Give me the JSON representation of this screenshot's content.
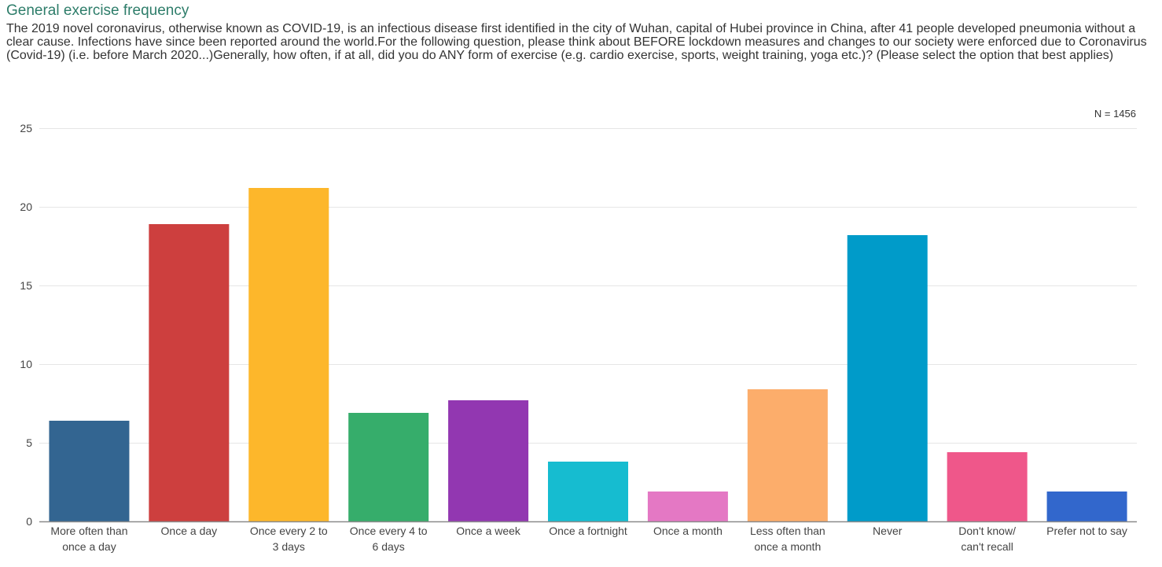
{
  "chart_data": {
    "type": "bar",
    "title": "General exercise frequency",
    "subtitle": "The 2019 novel coronavirus, otherwise known as COVID-19, is an infectious disease first identified in the city of Wuhan, capital of Hubei province in China, after 41 people developed pneumonia without a clear cause. Infections have since been reported around the world.For the following question, please think about BEFORE lockdown measures and changes to our society were enforced due to Coronavirus (Covid-19) (i.e. before March 2020...)Generally, how often, if at all, did you do ANY form of exercise (e.g. cardio exercise, sports, weight training, yoga etc.)? (Please select the option that best applies)",
    "sample_size": "N = 1456",
    "categories": [
      [
        "More often than",
        "once a day"
      ],
      [
        "Once a day"
      ],
      [
        "Once every 2 to",
        "3 days"
      ],
      [
        "Once every 4 to",
        "6 days"
      ],
      [
        "Once a week"
      ],
      [
        "Once a fortnight"
      ],
      [
        "Once a month"
      ],
      [
        "Less often than",
        "once a month"
      ],
      [
        "Never"
      ],
      [
        "Don't know/",
        "can't recall"
      ],
      [
        "Prefer not to say"
      ]
    ],
    "values": [
      6.4,
      18.9,
      21.2,
      6.9,
      7.7,
      3.8,
      1.9,
      8.4,
      18.2,
      4.4,
      1.9
    ],
    "colors": [
      "#336591",
      "#cd3f3e",
      "#fdb72b",
      "#36ad6b",
      "#9237b1",
      "#16bcd0",
      "#e478c4",
      "#fcad6b",
      "#009bc9",
      "#ef578a",
      "#3267cc"
    ],
    "ylim": [
      0,
      25
    ],
    "yticks": [
      0,
      5,
      10,
      15,
      20,
      25
    ],
    "xlabel": "",
    "ylabel": "",
    "grid": true,
    "legend": "none"
  }
}
